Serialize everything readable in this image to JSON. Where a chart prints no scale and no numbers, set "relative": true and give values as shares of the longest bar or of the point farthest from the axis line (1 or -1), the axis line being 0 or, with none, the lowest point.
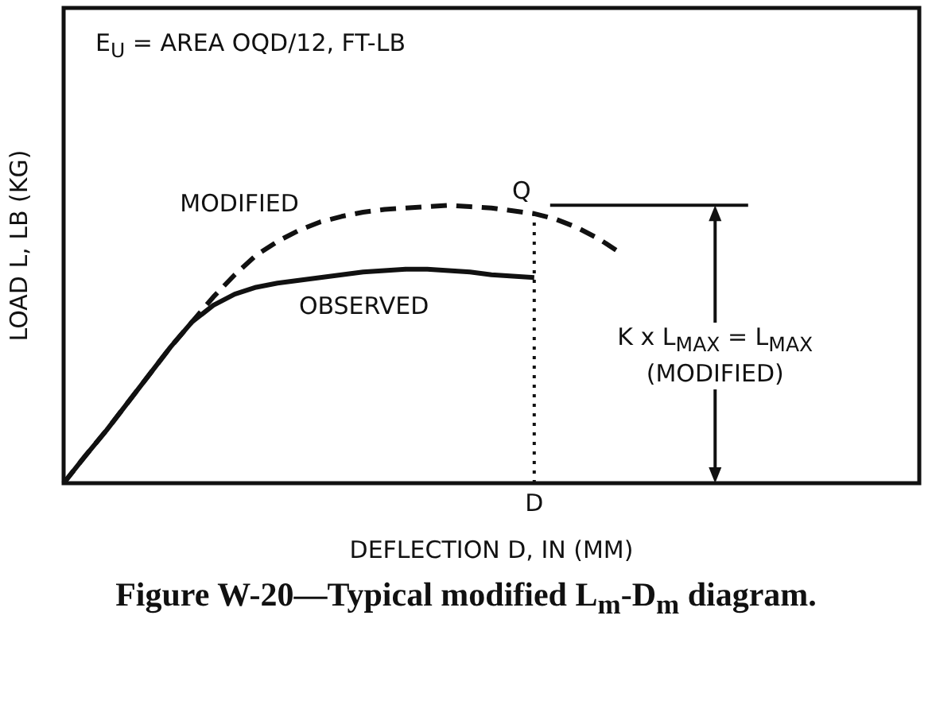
{
  "chart_data": {
    "type": "line",
    "relative": true,
    "xlabel": "DEFLECTION D, IN (MM)",
    "ylabel": "LOAD L, LB (KG)",
    "categories": [
      null,
      null,
      null,
      null,
      null,
      null,
      null,
      null,
      null,
      null,
      null,
      null,
      null,
      null,
      null,
      null,
      null,
      null,
      null,
      null,
      null,
      null,
      null,
      null,
      null,
      null,
      null,
      null,
      null,
      null,
      null,
      null,
      null,
      null,
      null,
      null,
      null,
      null,
      null,
      null,
      null
    ],
    "series": [
      {
        "name": "MODIFIED",
        "color": "#111111",
        "line_style": "dashed",
        "values": [
          0,
          0.097,
          0.19,
          0.29,
          0.39,
          0.49,
          0.58,
          0.67,
          0.75,
          0.82,
          0.87,
          0.91,
          0.94,
          0.96,
          0.975,
          0.985,
          0.99,
          0.995,
          1,
          0.995,
          0.99,
          0.98,
          0.97,
          0.95,
          0.92,
          0.88,
          0.83,
          null,
          null,
          null,
          null,
          null,
          null,
          null,
          null,
          null,
          null,
          null,
          null,
          null,
          null
        ]
      },
      {
        "name": "OBSERVED",
        "color": "#111111",
        "line_style": "solid",
        "values": [
          0,
          0.097,
          0.19,
          0.29,
          0.39,
          0.49,
          0.58,
          0.64,
          0.68,
          0.705,
          0.72,
          0.73,
          0.74,
          0.75,
          0.76,
          0.765,
          0.77,
          0.77,
          0.765,
          0.76,
          0.75,
          0.745,
          0.74,
          null,
          null,
          null,
          null,
          null,
          null,
          null,
          null,
          null,
          null,
          null,
          null,
          null,
          null,
          null,
          null,
          null,
          null
        ]
      }
    ],
    "marker": "none",
    "legend": false,
    "grid": false,
    "ref_lines": [
      {
        "axis": "y",
        "value": 1,
        "line_style": "solid",
        "color": "#111111"
      }
    ],
    "annotations": [
      "E$_{U}$ = AREA OQD/12, FT-LB",
      "K x L$_{MAX}$ = L$_{MAX}$ (MODIFIED)",
      {
        "text": "Q",
        "y": 1
      },
      "Figure W-20—Typical modified L$_{m}$-D$_{m}$ diagram.",
      "D"
    ]
  }
}
